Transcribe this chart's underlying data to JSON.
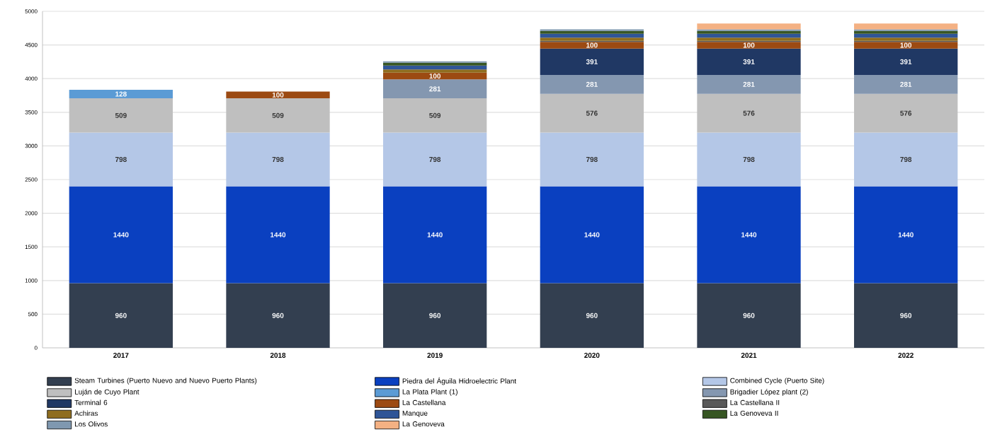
{
  "chart_data": {
    "type": "bar",
    "stacked": true,
    "grid": "y",
    "legend": "bottom",
    "categories": [
      "2017",
      "2018",
      "2019",
      "2020",
      "2021",
      "2022"
    ],
    "ylim": [
      0,
      5000
    ],
    "yticks": [
      0,
      500,
      1000,
      1500,
      2000,
      2500,
      3000,
      3500,
      4000,
      4500,
      5000
    ],
    "series": [
      {
        "name": "Steam Turbines (Puerto Nuevo and Nuevo Puerto Plants)",
        "color": "#333f50",
        "values": [
          960,
          960,
          960,
          960,
          960,
          960
        ],
        "value_labels": [
          "960",
          "960",
          "960",
          "960",
          "960",
          "960"
        ]
      },
      {
        "name": "Piedra del Águila Hidroelectric Plant",
        "color": "#0a40c0",
        "values": [
          1440,
          1440,
          1440,
          1440,
          1440,
          1440
        ],
        "value_labels": [
          "1440",
          "1440",
          "1440",
          "1440",
          "1440",
          "1440"
        ]
      },
      {
        "name": "Combined Cycle (Puerto Site)",
        "color": "#b4c7e7",
        "values": [
          798,
          798,
          798,
          798,
          798,
          798
        ],
        "value_labels": [
          "798",
          "798",
          "798",
          "798",
          "798",
          "798"
        ]
      },
      {
        "name": "Luján de Cuyo Plant",
        "color": "#bfbfbf",
        "values": [
          509,
          509,
          509,
          576,
          576,
          576
        ],
        "value_labels": [
          "509",
          "509",
          "509",
          "576",
          "576",
          "576"
        ]
      },
      {
        "name": "La Plata Plant (1)",
        "color": "#5b9bd5",
        "values": [
          128,
          null,
          null,
          null,
          null,
          null
        ],
        "value_labels": [
          "128",
          null,
          null,
          null,
          null,
          null
        ]
      },
      {
        "name": "Brigadier López plant (2)",
        "color": "#8497b0",
        "values": [
          null,
          null,
          281,
          281,
          281,
          281
        ],
        "value_labels": [
          null,
          null,
          "281",
          "281",
          "281",
          "281"
        ]
      },
      {
        "name": "Terminal 6",
        "color": "#203864",
        "values": [
          null,
          null,
          null,
          391,
          391,
          391
        ],
        "value_labels": [
          null,
          null,
          null,
          "391",
          "391",
          "391"
        ]
      },
      {
        "name": "La Castellana",
        "color": "#9c4a12",
        "values": [
          null,
          100,
          100,
          100,
          100,
          100
        ],
        "value_labels": [
          null,
          "100",
          "100",
          "100",
          "100",
          "100"
        ]
      },
      {
        "name": "La Castellana II",
        "color": "#595959",
        "values": [
          null,
          null,
          null,
          15,
          15,
          15
        ]
      },
      {
        "name": "Achiras",
        "color": "#8f6d1f",
        "values": [
          null,
          null,
          48,
          48,
          48,
          48
        ]
      },
      {
        "name": "Manque",
        "color": "#2f5597",
        "values": [
          null,
          null,
          57,
          57,
          57,
          57
        ]
      },
      {
        "name": "La Genoveva II",
        "color": "#375623",
        "values": [
          null,
          null,
          42,
          42,
          42,
          42
        ]
      },
      {
        "name": "Los Olivos",
        "color": "#7f98b0",
        "values": [
          null,
          null,
          23,
          23,
          23,
          23
        ]
      },
      {
        "name": "La Genoveva",
        "color": "#f4b183",
        "values": [
          null,
          null,
          null,
          null,
          88,
          88
        ]
      }
    ]
  }
}
